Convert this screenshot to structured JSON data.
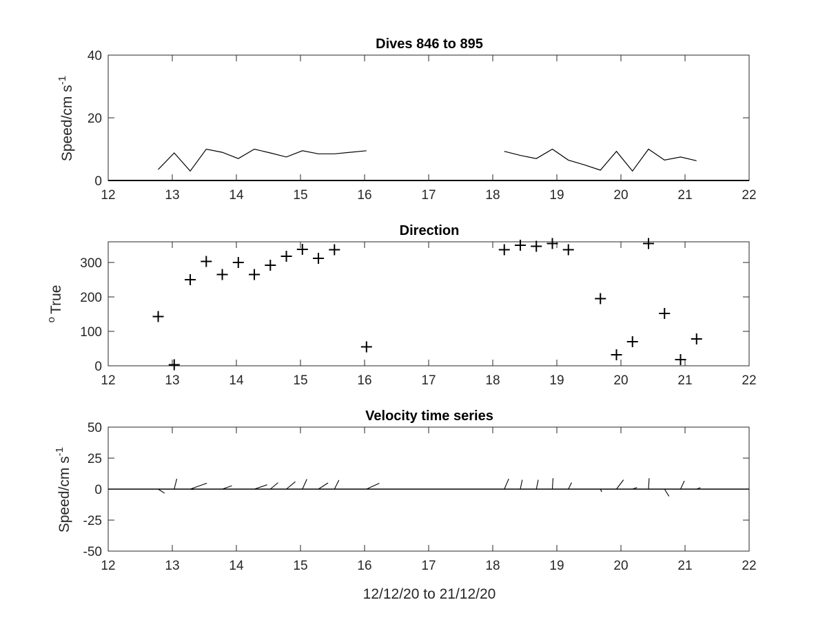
{
  "chart_data": [
    {
      "type": "line",
      "title": "Dives 846 to 895",
      "ylabel_main": "Speed/cm s",
      "ylabel_sup": "-1",
      "xlim": [
        12,
        22
      ],
      "ylim": [
        0,
        40
      ],
      "xticks": [
        12,
        13,
        14,
        15,
        16,
        17,
        18,
        19,
        20,
        21,
        22
      ],
      "yticks": [
        0,
        20,
        40
      ],
      "xtick_labels": [
        "12",
        "13",
        "14",
        "15",
        "16",
        "17",
        "18",
        "19",
        "20",
        "21",
        "22"
      ],
      "ytick_labels": [
        "0",
        "20",
        "40"
      ],
      "colors": {
        "line": "#000000"
      },
      "segments": [
        {
          "x": [
            12.78,
            13.03,
            13.28,
            13.53,
            13.78,
            14.03,
            14.28,
            14.53,
            14.78,
            15.03,
            15.28,
            15.53,
            16.03
          ],
          "y": [
            3.5,
            8.8,
            3.0,
            10.0,
            9.0,
            7.0,
            10.0,
            8.8,
            7.5,
            9.5,
            8.5,
            8.5,
            9.5
          ]
        },
        {
          "x": [
            18.18,
            18.43,
            18.68,
            18.93,
            19.18,
            19.43,
            19.68,
            19.93,
            20.18,
            20.43,
            20.68,
            20.93,
            21.18
          ],
          "y": [
            9.3,
            8.0,
            7.0,
            10.0,
            6.5,
            5.0,
            3.3,
            9.3,
            3.0,
            10.0,
            6.5,
            7.5,
            6.3
          ]
        }
      ]
    },
    {
      "type": "scatter",
      "title": "Direction",
      "ylabel_main": "True",
      "ylabel_sup": "o",
      "xlim": [
        12,
        22
      ],
      "ylim": [
        0,
        360
      ],
      "xticks": [
        12,
        13,
        14,
        15,
        16,
        17,
        18,
        19,
        20,
        21,
        22
      ],
      "yticks": [
        0,
        100,
        200,
        300
      ],
      "xtick_labels": [
        "12",
        "13",
        "14",
        "15",
        "16",
        "17",
        "18",
        "19",
        "20",
        "21",
        "22"
      ],
      "ytick_labels": [
        "0",
        "100",
        "200",
        "300"
      ],
      "marker": "+",
      "colors": {
        "marker": "#000000"
      },
      "x": [
        12.78,
        13.03,
        13.28,
        13.53,
        13.78,
        14.03,
        14.28,
        14.53,
        14.78,
        15.03,
        15.28,
        15.53,
        16.03,
        18.18,
        18.43,
        18.68,
        18.93,
        19.18,
        19.68,
        19.93,
        20.18,
        20.43,
        20.68,
        20.93,
        21.18
      ],
      "y": [
        143,
        3,
        250,
        303,
        265,
        300,
        265,
        292,
        318,
        338,
        312,
        337,
        55,
        337,
        350,
        347,
        355,
        337,
        195,
        32,
        70,
        355,
        152,
        18,
        78
      ]
    },
    {
      "type": "line",
      "subtype": "stick",
      "title": "Velocity time series",
      "ylabel_main": "Speed/cm s",
      "ylabel_sup": "-1",
      "xlabel": "12/12/20 to 21/12/20",
      "xlim": [
        12,
        22
      ],
      "ylim": [
        -50,
        50
      ],
      "xticks": [
        12,
        13,
        14,
        15,
        16,
        17,
        18,
        19,
        20,
        21,
        22
      ],
      "yticks": [
        -50,
        -25,
        0,
        25,
        50
      ],
      "xtick_labels": [
        "12",
        "13",
        "14",
        "15",
        "16",
        "17",
        "18",
        "19",
        "20",
        "21",
        "22"
      ],
      "ytick_labels": [
        "-50",
        "-25",
        "0",
        "25",
        "50"
      ],
      "colors": {
        "stick": "#000000"
      },
      "sticks": [
        {
          "x": 12.78,
          "dx": 0.1,
          "dy": -3.3
        },
        {
          "x": 13.03,
          "dx": 0.04,
          "dy": 8.3
        },
        {
          "x": 13.28,
          "dx": 0.05,
          "dy": -0.3
        },
        {
          "x": 13.28,
          "dx": 0.26,
          "dy": 4.8
        },
        {
          "x": 13.78,
          "dx": 0.15,
          "dy": 2.7
        },
        {
          "x": 14.28,
          "dx": 0.2,
          "dy": 3.5
        },
        {
          "x": 14.53,
          "dx": 0.12,
          "dy": 5.2
        },
        {
          "x": 14.78,
          "dx": 0.14,
          "dy": 6.0
        },
        {
          "x": 15.03,
          "dx": 0.07,
          "dy": 8.0
        },
        {
          "x": 15.28,
          "dx": 0.15,
          "dy": 5.0
        },
        {
          "x": 15.53,
          "dx": 0.07,
          "dy": 7.3
        },
        {
          "x": 16.03,
          "dx": 0.2,
          "dy": 4.7
        },
        {
          "x": 18.18,
          "dx": 0.07,
          "dy": 8.3
        },
        {
          "x": 18.43,
          "dx": 0.03,
          "dy": 7.5
        },
        {
          "x": 18.68,
          "dx": 0.03,
          "dy": 7.5
        },
        {
          "x": 18.93,
          "dx": 0.01,
          "dy": 8.8
        },
        {
          "x": 19.18,
          "dx": 0.05,
          "dy": 5.3
        },
        {
          "x": 19.68,
          "dx": 0.02,
          "dy": -2.3
        },
        {
          "x": 19.93,
          "dx": 0.11,
          "dy": 7.5
        },
        {
          "x": 20.18,
          "dx": 0.07,
          "dy": 1.3
        },
        {
          "x": 20.43,
          "dx": 0.01,
          "dy": 8.8
        },
        {
          "x": 20.68,
          "dx": 0.07,
          "dy": -5.8
        },
        {
          "x": 20.93,
          "dx": 0.06,
          "dy": 6.7
        },
        {
          "x": 21.18,
          "dx": 0.06,
          "dy": 1.2
        }
      ]
    }
  ]
}
